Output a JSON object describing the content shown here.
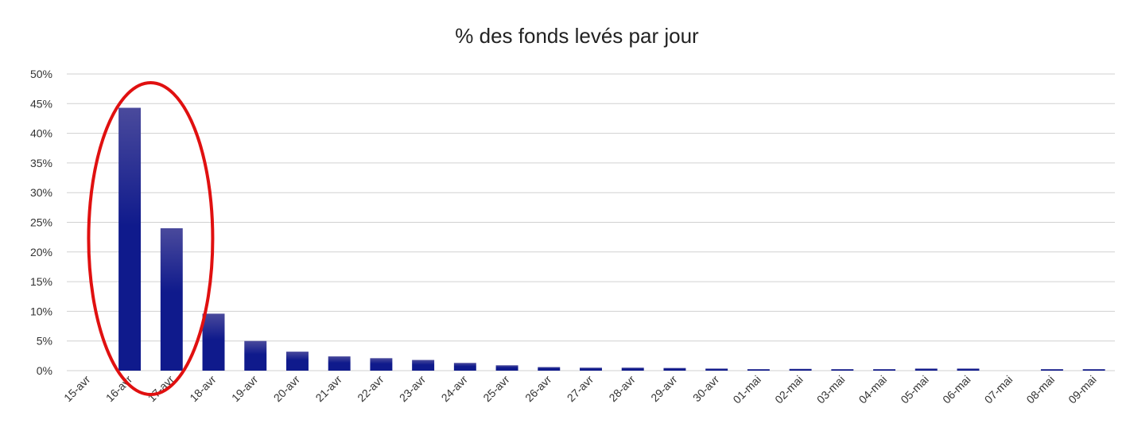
{
  "chart_data": {
    "type": "bar",
    "title": "% des fonds levés par jour",
    "xlabel": "",
    "ylabel": "",
    "ylim": [
      0,
      50
    ],
    "yticks": [
      "0%",
      "5%",
      "10%",
      "15%",
      "20%",
      "25%",
      "30%",
      "35%",
      "40%",
      "45%",
      "50%"
    ],
    "grid": true,
    "legend": "none",
    "categories": [
      "15-avr",
      "16-avr",
      "17-avr",
      "18-avr",
      "19-avr",
      "20-avr",
      "21-avr",
      "22-avr",
      "23-avr",
      "24-avr",
      "25-avr",
      "26-avr",
      "27-avr",
      "28-avr",
      "29-avr",
      "30-avr",
      "01-mai",
      "02-mai",
      "03-mai",
      "04-mai",
      "05-mai",
      "06-mai",
      "07-mai",
      "08-mai",
      "09-mai"
    ],
    "values": [
      0,
      44.3,
      24.0,
      9.6,
      5.0,
      3.2,
      2.4,
      2.1,
      1.8,
      1.3,
      0.9,
      0.6,
      0.5,
      0.5,
      0.45,
      0.35,
      0.25,
      0.3,
      0.25,
      0.25,
      0.35,
      0.35,
      0,
      0.25,
      0.25
    ],
    "annotation": "red ellipse around 16-avr and 17-avr",
    "colors": {
      "bar_top": "#4a4a9c",
      "bar_bottom": "#0f1a8c",
      "grid": "#d0d0d0",
      "highlight": "#e01010"
    }
  }
}
